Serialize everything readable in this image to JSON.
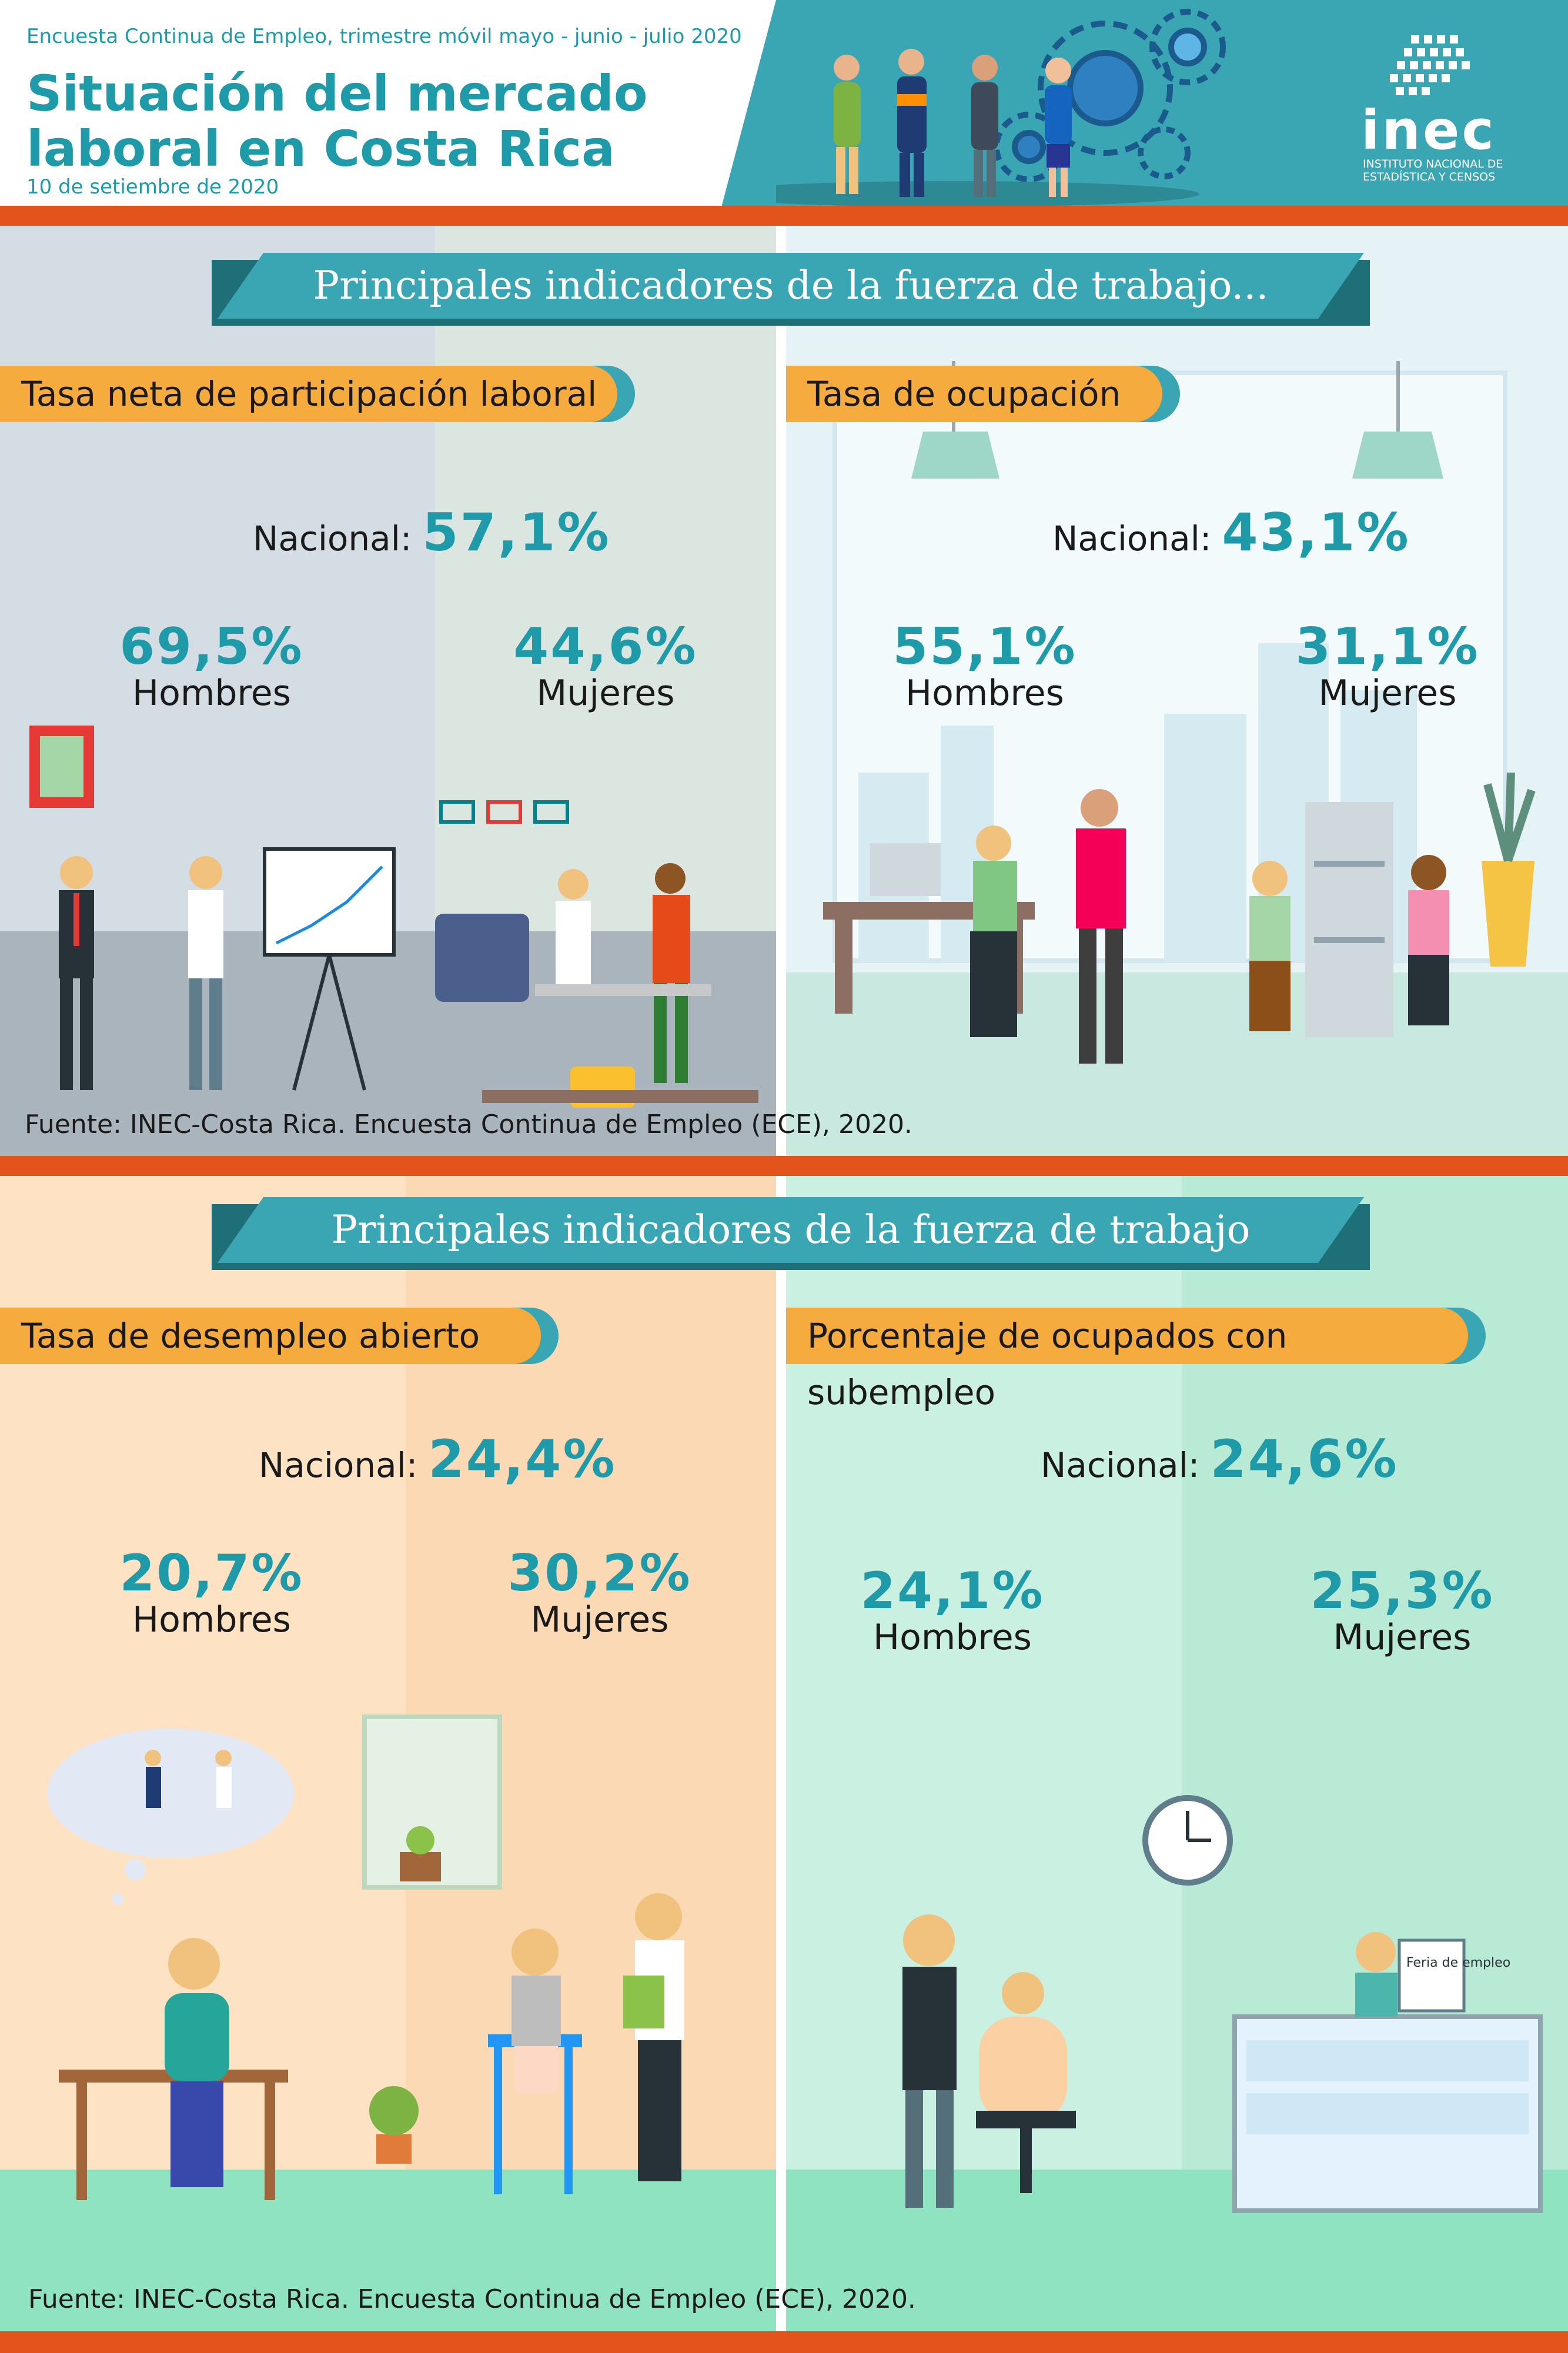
{
  "header": {
    "subtitle": "Encuesta Continua de Empleo, trimestre móvil mayo - junio - julio 2020",
    "title": "Situación del mercado laboral en Costa Rica",
    "date": "10 de setiembre de 2020",
    "logo_text": "inec",
    "logo_sub": "INSTITUTO NACIONAL DE ESTADÍSTICA Y CENSOS"
  },
  "section1": {
    "banner": "Principales indicadores de la fuerza de trabajo...",
    "left": {
      "title": "Tasa neta de participación laboral",
      "national_label": "Nacional:",
      "national_value": "57,1%",
      "men_value": "69,5%",
      "men_label": "Hombres",
      "women_value": "44,6%",
      "women_label": "Mujeres"
    },
    "right": {
      "title": "Tasa de ocupación",
      "national_label": "Nacional:",
      "national_value": "43,1%",
      "men_value": "55,1%",
      "men_label": "Hombres",
      "women_value": "31,1%",
      "women_label": "Mujeres"
    },
    "source": "Fuente: INEC-Costa Rica. Encuesta Continua de Empleo (ECE), 2020."
  },
  "section2": {
    "banner": "Principales indicadores de la fuerza de trabajo",
    "left": {
      "title": "Tasa de desempleo abierto",
      "national_label": "Nacional:",
      "national_value": "24,4%",
      "men_value": "20,7%",
      "men_label": "Hombres",
      "women_value": "30,2%",
      "women_label": "Mujeres"
    },
    "right": {
      "title": "Porcentaje de ocupados con subempleo",
      "national_label": "Nacional:",
      "national_value": "24,6%",
      "men_value": "24,1%",
      "men_label": "Hombres",
      "women_value": "25,3%",
      "women_label": "Mujeres"
    },
    "source": "Fuente: INEC-Costa Rica. Encuesta Continua de Empleo (ECE), 2020.",
    "sign_text": "Feria de empleo"
  },
  "colors": {
    "teal": "#3aa6b3",
    "teal_text": "#1e9aa8",
    "orange_bar": "#e2541b",
    "pill": "#f6ab3f"
  }
}
